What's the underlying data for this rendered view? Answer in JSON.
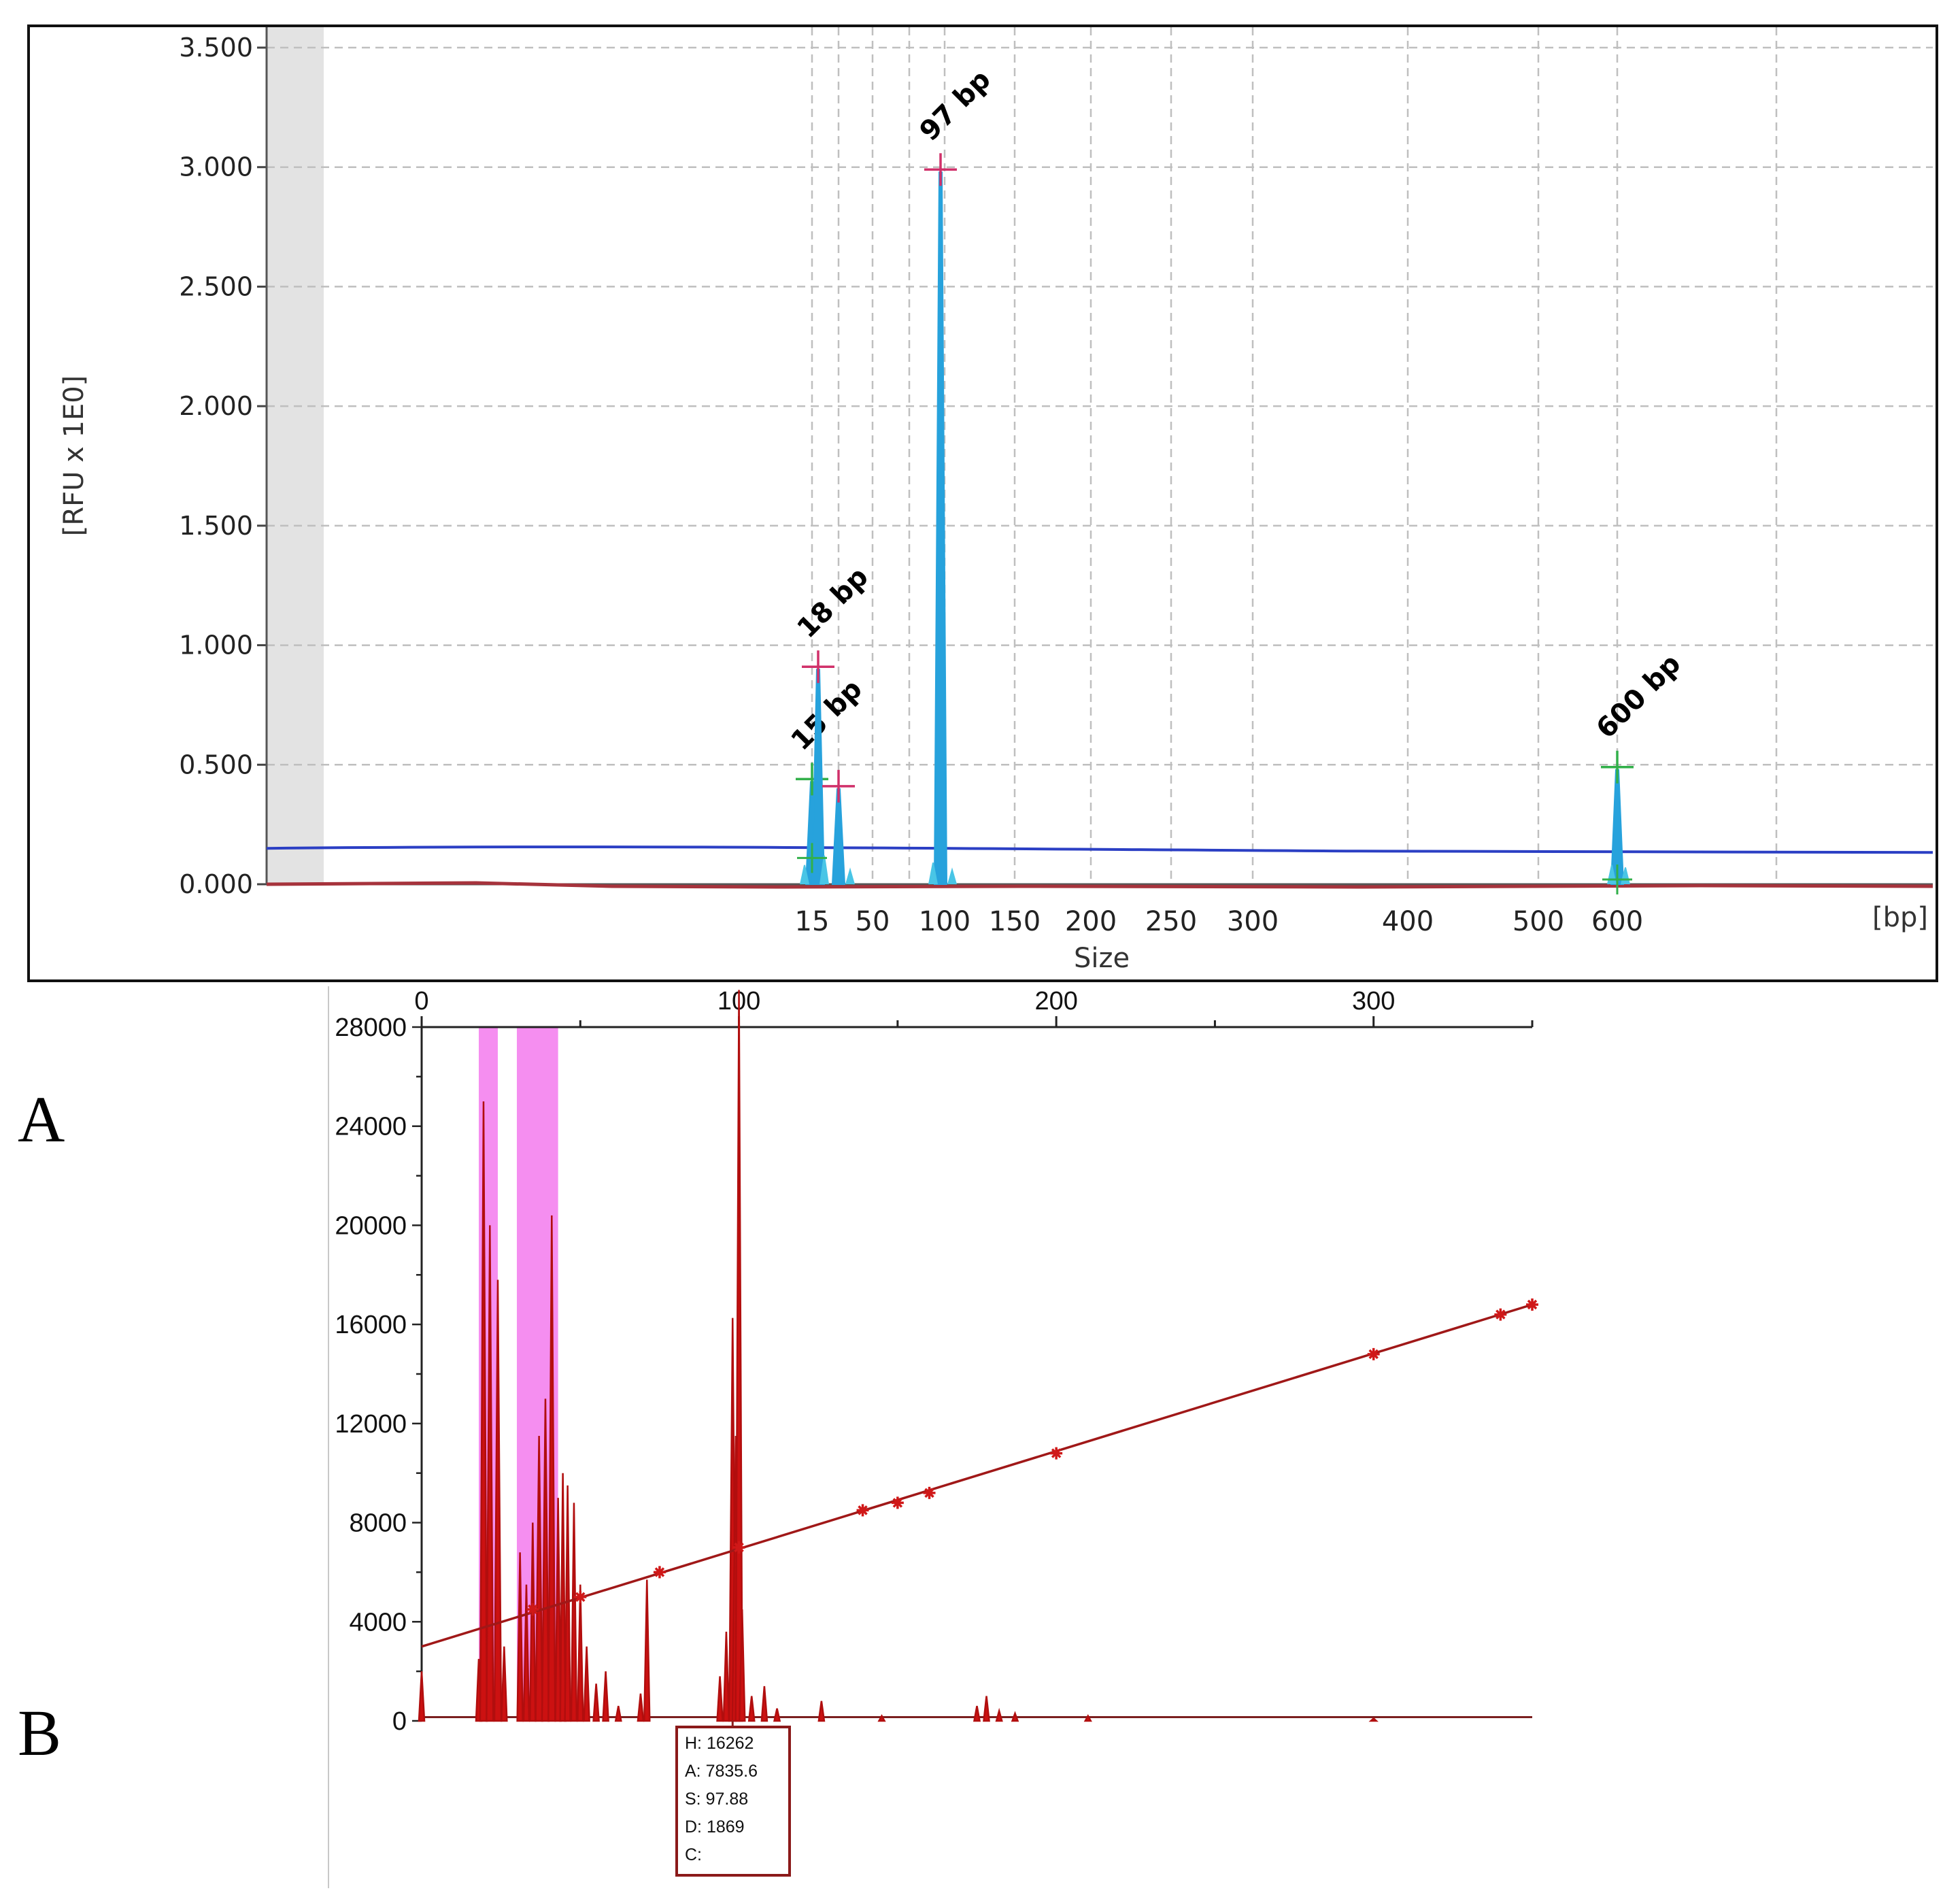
{
  "panels": {
    "a_label": "A",
    "b_label": "B"
  },
  "chart_data": [
    {
      "type": "line",
      "title": "",
      "xlabel": "Size",
      "xunit": "[bp]",
      "ylabel": "[RFU x 1E0]",
      "ylim": [
        0,
        3500
      ],
      "yticks": [
        {
          "value": 0,
          "label": "0.000"
        },
        {
          "value": 500,
          "label": "0.500"
        },
        {
          "value": 1000,
          "label": "1.000"
        },
        {
          "value": 1500,
          "label": "1.500"
        },
        {
          "value": 2000,
          "label": "2.000"
        },
        {
          "value": 2500,
          "label": "2.500"
        },
        {
          "value": 3000,
          "label": "3.000"
        },
        {
          "value": 3500,
          "label": "3.500"
        }
      ],
      "xticks": [
        "15",
        "50",
        "100",
        "150",
        "200",
        "250",
        "300",
        "400",
        "500",
        "600"
      ],
      "grid": true,
      "baseline_blue_rfu": 150,
      "baseline_red_rfu": 0,
      "peaks": [
        {
          "label": "15 bp",
          "size_bp": 15,
          "rfu": 440,
          "marker_color": "#32b04a"
        },
        {
          "label": "18 bp",
          "size_bp": 18,
          "rfu": 910,
          "marker_color": "#d0306a"
        },
        {
          "label": "",
          "size_bp": 35,
          "rfu": 410,
          "marker_color": "#d0306a"
        },
        {
          "label": "97 bp",
          "size_bp": 97,
          "rfu": 2990,
          "marker_color": "#d0306a"
        },
        {
          "label": "600 bp",
          "size_bp": 600,
          "rfu": 490,
          "marker_color": "#32b04a"
        }
      ],
      "colors": {
        "signal": "#27a2dc",
        "baseline_blue": "#2b3fc4",
        "baseline_red": "#a6333c",
        "grid": "#bfbfbf",
        "shade": "#e3e3e3"
      }
    },
    {
      "type": "line",
      "title": "",
      "xlabel": "",
      "ylabel": "",
      "xlim": [
        0,
        350
      ],
      "ylim": [
        0,
        28000
      ],
      "xticks": [
        "0",
        "100",
        "200",
        "300"
      ],
      "yticks": [
        "0",
        "4000",
        "8000",
        "12000",
        "16000",
        "20000",
        "24000",
        "28000"
      ],
      "highlight_ranges_x": [
        [
          18,
          24
        ],
        [
          30,
          43
        ]
      ],
      "calibration_points": [
        {
          "x": 35,
          "y": 4500
        },
        {
          "x": 50,
          "y": 5000
        },
        {
          "x": 75,
          "y": 6000
        },
        {
          "x": 100,
          "y": 7000
        },
        {
          "x": 139,
          "y": 8500
        },
        {
          "x": 150,
          "y": 8800
        },
        {
          "x": 160,
          "y": 9200
        },
        {
          "x": 200,
          "y": 10800
        },
        {
          "x": 300,
          "y": 14800
        },
        {
          "x": 340,
          "y": 16400
        },
        {
          "x": 350,
          "y": 16800
        }
      ],
      "calibration_line": {
        "x0": 0,
        "y0": 3000,
        "x1": 350,
        "y1": 16800
      },
      "peaks": [
        {
          "x": 0,
          "y": 2000
        },
        {
          "x": 18,
          "y": 2500
        },
        {
          "x": 19.5,
          "y": 25000
        },
        {
          "x": 21.5,
          "y": 20000
        },
        {
          "x": 24,
          "y": 17800
        },
        {
          "x": 26,
          "y": 3000
        },
        {
          "x": 31,
          "y": 6800
        },
        {
          "x": 33,
          "y": 5500
        },
        {
          "x": 35,
          "y": 8000
        },
        {
          "x": 37,
          "y": 11500
        },
        {
          "x": 39,
          "y": 13000
        },
        {
          "x": 41,
          "y": 20400
        },
        {
          "x": 43,
          "y": 9000
        },
        {
          "x": 44.5,
          "y": 10000
        },
        {
          "x": 46,
          "y": 9500
        },
        {
          "x": 48,
          "y": 8800
        },
        {
          "x": 50,
          "y": 5500
        },
        {
          "x": 52,
          "y": 3000
        },
        {
          "x": 55,
          "y": 1500
        },
        {
          "x": 58,
          "y": 2000
        },
        {
          "x": 62,
          "y": 600
        },
        {
          "x": 69,
          "y": 1100
        },
        {
          "x": 71,
          "y": 5700
        },
        {
          "x": 94,
          "y": 1800
        },
        {
          "x": 96,
          "y": 3600
        },
        {
          "x": 98,
          "y": 16262
        },
        {
          "x": 99,
          "y": 11500
        },
        {
          "x": 100,
          "y": 29500
        },
        {
          "x": 101,
          "y": 4500
        },
        {
          "x": 104,
          "y": 1000
        },
        {
          "x": 108,
          "y": 1400
        },
        {
          "x": 112,
          "y": 500
        },
        {
          "x": 126,
          "y": 800
        },
        {
          "x": 145,
          "y": 200
        },
        {
          "x": 175,
          "y": 600
        },
        {
          "x": 178,
          "y": 1000
        },
        {
          "x": 182,
          "y": 400
        },
        {
          "x": 187,
          "y": 300
        },
        {
          "x": 210,
          "y": 200
        },
        {
          "x": 300,
          "y": 100
        }
      ],
      "colors": {
        "signal": "#cc1111",
        "trace": "#7a1f1f",
        "highlight": "#f58ef0",
        "calibration": "#a01818"
      }
    }
  ],
  "info_box": {
    "h": "H: 16262",
    "a": "A: 7835.6",
    "s": "S: 97.88",
    "d": "D: 1869",
    "c": "C:"
  }
}
